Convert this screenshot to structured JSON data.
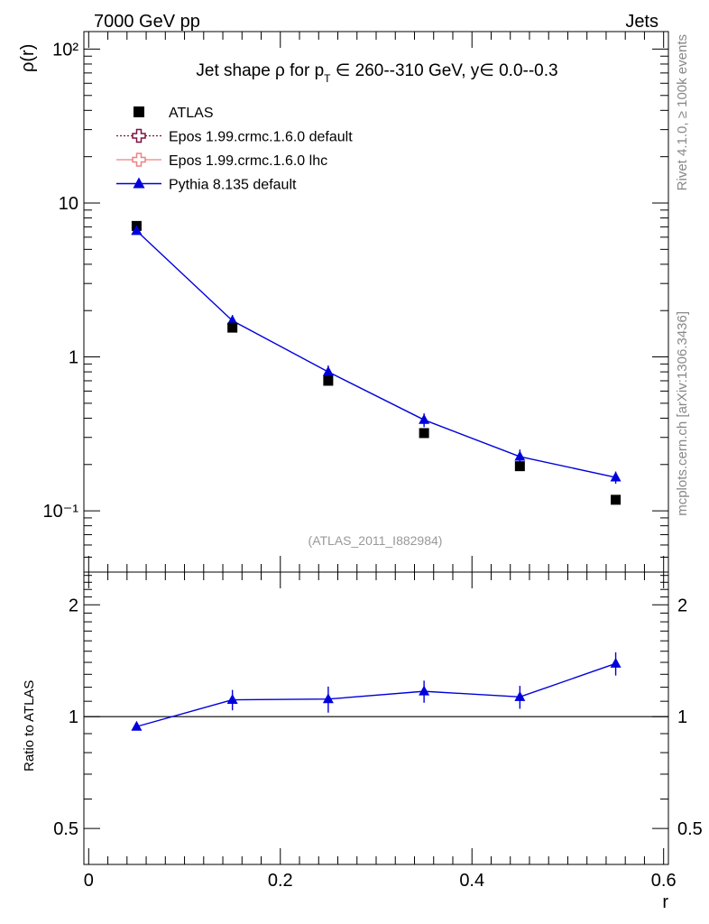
{
  "header": {
    "energy": "7000 GeV pp",
    "process": "Jets"
  },
  "side": {
    "rivet": "Rivet 4.1.0, ≥ 100k events",
    "mcplots": "mcplots.cern.ch [arXiv:1306.3436]"
  },
  "chart_data": [
    {
      "type": "scatter",
      "panel": "main",
      "title": "Jet shape ρ for p_T ∈ 260--310 GeV, y∈ 0.0--0.3",
      "ylabel": "ρ(r)",
      "yscale": "log",
      "ylim": [
        0.04,
        130
      ],
      "xlim": [
        -0.005,
        0.605
      ],
      "analysis_label": "(ATLAS_2011_I882984)",
      "x": [
        0.05,
        0.15,
        0.25,
        0.35,
        0.45,
        0.55
      ],
      "series": [
        {
          "name": "ATLAS",
          "marker": "square",
          "color": "#000000",
          "values": [
            7.1,
            1.55,
            0.7,
            0.32,
            0.195,
            0.118
          ],
          "errors": [
            0,
            0,
            0,
            0,
            0,
            0
          ]
        },
        {
          "name": "Epos 1.99.crmc.1.6.0 default",
          "marker": "open-cross",
          "color": "#7f0f3f",
          "line": "dotted",
          "values": []
        },
        {
          "name": "Epos 1.99.crmc.1.6.0 lhc",
          "marker": "open-cross",
          "color": "#f08080",
          "line": "solid",
          "values": []
        },
        {
          "name": "Pythia 8.135 default",
          "marker": "triangle",
          "color": "#0000dd",
          "values": [
            6.6,
            1.72,
            0.8,
            0.39,
            0.225,
            0.165
          ],
          "errors": [
            0.2,
            0.15,
            0.08,
            0.04,
            0.025,
            0.015
          ]
        }
      ],
      "yticks": [
        {
          "v": 0.1,
          "label": "10⁻¹"
        },
        {
          "v": 1,
          "label": "1"
        },
        {
          "v": 10,
          "label": "10"
        },
        {
          "v": 100,
          "label": "10²"
        }
      ]
    },
    {
      "type": "line",
      "panel": "ratio",
      "ylabel": "Ratio to ATLAS",
      "xlabel": "r",
      "yscale": "log",
      "ylim": [
        0.4,
        2.45
      ],
      "xlim": [
        -0.005,
        0.605
      ],
      "reference": 1,
      "x": [
        0.05,
        0.15,
        0.25,
        0.35,
        0.45,
        0.55
      ],
      "series": [
        {
          "name": "Pythia 8.135 default",
          "color": "#0000dd",
          "values": [
            0.94,
            1.11,
            1.115,
            1.17,
            1.13,
            1.39
          ],
          "err_low": [
            0.02,
            0.07,
            0.09,
            0.08,
            0.08,
            0.1
          ],
          "err_high": [
            0.02,
            0.07,
            0.09,
            0.08,
            0.08,
            0.1
          ]
        }
      ],
      "yticks": [
        {
          "v": 0.5,
          "label": "0.5"
        },
        {
          "v": 1,
          "label": "1"
        },
        {
          "v": 2,
          "label": "2"
        }
      ],
      "xticks": [
        {
          "v": 0,
          "label": "0"
        },
        {
          "v": 0.2,
          "label": "0.2"
        },
        {
          "v": 0.4,
          "label": "0.4"
        },
        {
          "v": 0.6,
          "label": "0.6"
        }
      ]
    }
  ]
}
